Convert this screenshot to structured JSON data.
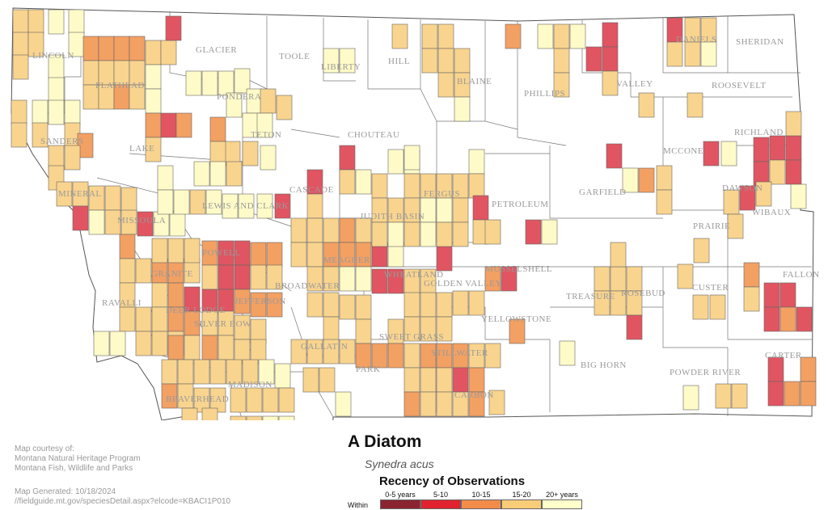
{
  "map": {
    "title": "A Diatom",
    "scientific_name": "Synedra acus",
    "county_labels": [
      {
        "name": "LINCOLN"
      },
      {
        "name": "GLACIER"
      },
      {
        "name": "TOOLE"
      },
      {
        "name": "LIBERTY"
      },
      {
        "name": "HILL"
      },
      {
        "name": "BLAINE"
      },
      {
        "name": "PHILLIPS"
      },
      {
        "name": "VALLEY"
      },
      {
        "name": "DANIELS"
      },
      {
        "name": "SHERIDAN"
      },
      {
        "name": "ROOSEVELT"
      },
      {
        "name": "FLATHEAD"
      },
      {
        "name": "PONDERA"
      },
      {
        "name": "TETON"
      },
      {
        "name": "CHOUTEAU"
      },
      {
        "name": "SANDERS"
      },
      {
        "name": "LAKE"
      },
      {
        "name": "RICHLAND"
      },
      {
        "name": "MCCONE"
      },
      {
        "name": "MINERAL"
      },
      {
        "name": "CASCADE"
      },
      {
        "name": "GARFIELD"
      },
      {
        "name": "DAWSON"
      },
      {
        "name": "FERGUS"
      },
      {
        "name": "PETROLEUM"
      },
      {
        "name": "LEWIS AND CLARK"
      },
      {
        "name": "WIBAUX"
      },
      {
        "name": "MISSOULA"
      },
      {
        "name": "JUDITH BASIN"
      },
      {
        "name": "PRAIRIE"
      },
      {
        "name": "POWELL"
      },
      {
        "name": "MEAGHER"
      },
      {
        "name": "WHEATLAND"
      },
      {
        "name": "MUSSELSHELL"
      },
      {
        "name": "GOLDEN VALLEY"
      },
      {
        "name": "GRANITE"
      },
      {
        "name": "BROADWATER"
      },
      {
        "name": "FALLON"
      },
      {
        "name": "CUSTER"
      },
      {
        "name": "RAVALLI"
      },
      {
        "name": "DEER LODGE"
      },
      {
        "name": "JEFFERSON"
      },
      {
        "name": "TREASURE"
      },
      {
        "name": "ROSEBUD"
      },
      {
        "name": "SILVER BOW"
      },
      {
        "name": "YELLOWSTONE"
      },
      {
        "name": "SWEET GRASS"
      },
      {
        "name": "GALLATIN"
      },
      {
        "name": "STILLWATER"
      },
      {
        "name": "PARK"
      },
      {
        "name": "BIG HORN"
      },
      {
        "name": "CARTER"
      },
      {
        "name": "POWDER RIVER"
      },
      {
        "name": "MADISON"
      },
      {
        "name": "CARBON"
      },
      {
        "name": "BEAVERHEAD"
      }
    ]
  },
  "legend": {
    "title": "Recency of Observations",
    "within_label": "Within",
    "items": [
      {
        "label": "0-5 years",
        "color": "#8b2430"
      },
      {
        "label": "5-10",
        "color": "#e0232e"
      },
      {
        "label": "10-15",
        "color": "#f28c4a"
      },
      {
        "label": "15-20",
        "color": "#f9cc78"
      },
      {
        "label": "20+ years",
        "color": "#ffffcc"
      }
    ]
  },
  "colors": {
    "c1": "#e05561",
    "c2": "#f3a063",
    "c3": "#f9d48e",
    "c4": "#fffbc8",
    "border": "#666666"
  },
  "credits": {
    "line1": "Map courtesy of:",
    "line2": "Montana Natural Heritage Program",
    "line3": "Montana Fish, Wildlife and Parks",
    "generated": "Map Generated: 10/18/2024",
    "url": "//fieldguide.mt.gov/speciesDetail.aspx?elcode=KBACI1P010"
  }
}
